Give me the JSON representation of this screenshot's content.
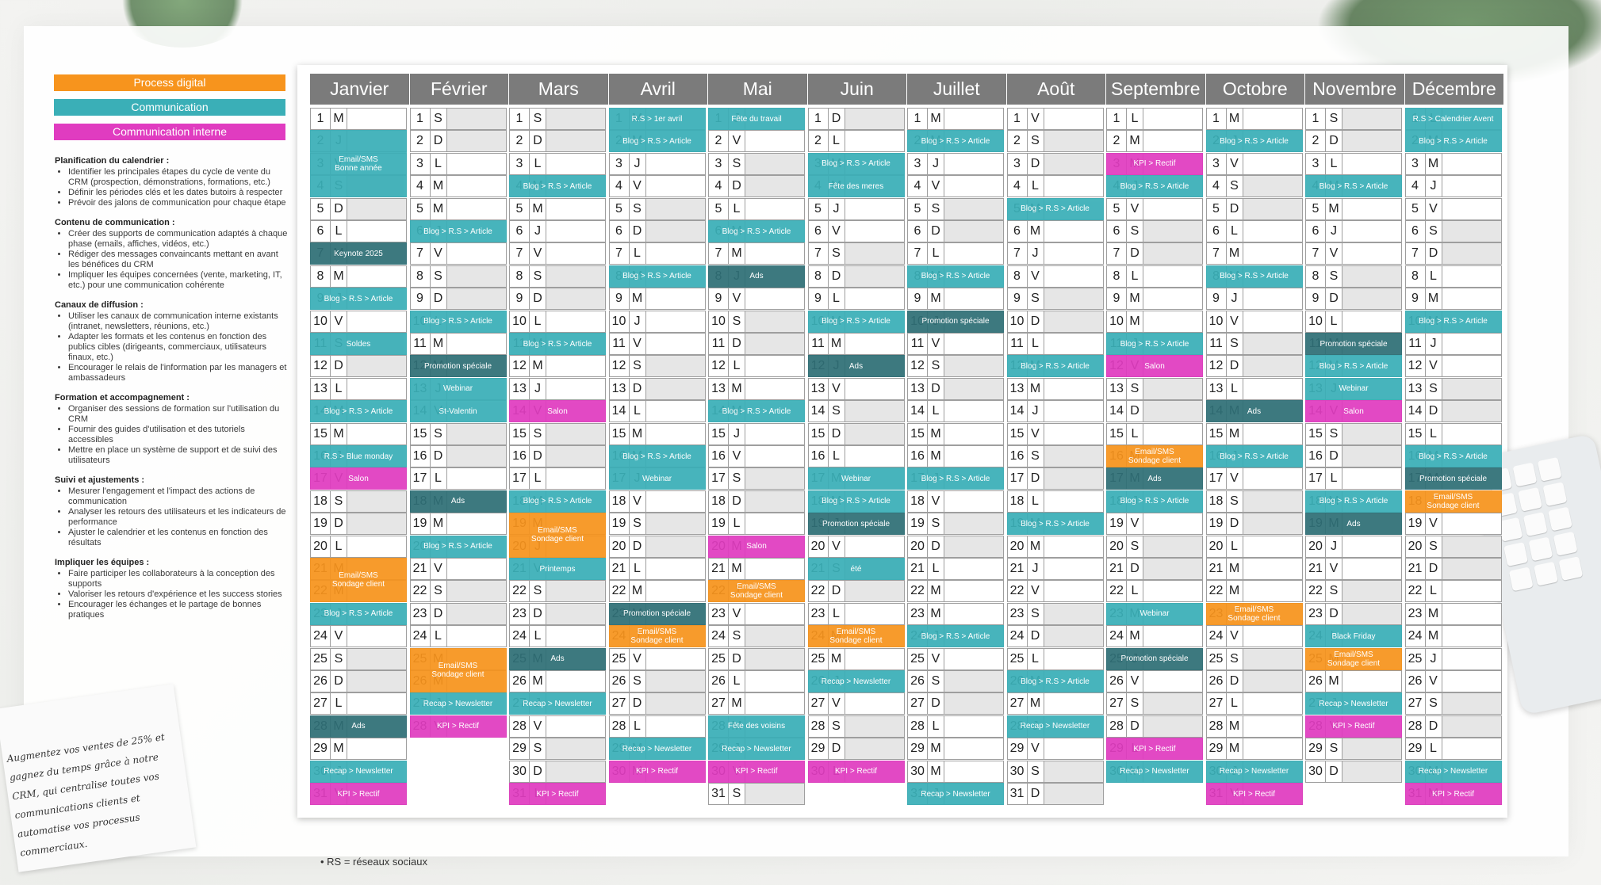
{
  "colors": {
    "process": "#f7941d",
    "comm": "#3aafb7",
    "interne": "#e03cc0",
    "dark": "#2f6f76",
    "header": "#7b7b7b"
  },
  "legend": [
    {
      "label": "Process digital",
      "color": "#f7941d"
    },
    {
      "label": "Communication",
      "color": "#3aafb7"
    },
    {
      "label": "Communication interne",
      "color": "#e03cc0"
    }
  ],
  "notes": [
    {
      "title": "Planification du calendrier :",
      "items": [
        "Identifier les principales étapes du cycle de vente du CRM (prospection, démonstrations, formations, etc.)",
        "Définir les périodes clés et les dates butoirs à respecter",
        "Prévoir des jalons de communication pour chaque étape"
      ]
    },
    {
      "title": "Contenu de communication :",
      "items": [
        "Créer des supports de communication adaptés à chaque phase (emails, affiches, vidéos, etc.)",
        "Rédiger des messages convaincants mettant en avant les bénéfices du CRM",
        "Impliquer les équipes concernées (vente, marketing, IT, etc.) pour une communication cohérente"
      ]
    },
    {
      "title": "Canaux de diffusion :",
      "items": [
        "Utiliser les canaux de communication interne existants (intranet, newsletters, réunions, etc.)",
        "Adapter les formats et les contenus en fonction des publics cibles (dirigeants, commerciaux, utilisateurs finaux, etc.)",
        "Encourager le relais de l'information par les managers et ambassadeurs"
      ]
    },
    {
      "title": "Formation et accompagnement :",
      "items": [
        "Organiser des sessions de formation sur l'utilisation du CRM",
        "Fournir des guides d'utilisation et des tutoriels accessibles",
        "Mettre en place un système de support et de suivi des utilisateurs"
      ]
    },
    {
      "title": "Suivi et ajustements :",
      "items": [
        "Mesurer l'engagement et l'impact des actions de communication",
        "Analyser les retours des utilisateurs et les indicateurs de performance",
        "Ajuster le calendrier et les contenus en fonction des résultats"
      ]
    },
    {
      "title": "Impliquer les équipes :",
      "items": [
        "Faire participer les collaborateurs à la conception des supports",
        "Valoriser les retours d'expérience et les success stories",
        "Encourager les échanges et le partage de bonnes pratiques"
      ]
    }
  ],
  "handwritten_note": "Augmentez vos ventes de 25% et gagnez du temps grâce à notre CRM, qui centralise toutes vos communications clients et automatise vos processus commerciaux.",
  "footnote": "RS = réseaux sociaux",
  "months": [
    {
      "name": "Janvier",
      "days": 31,
      "start": 2,
      "events": [
        [
          2,
          3,
          "c",
          "Email/SMS\nBonne année"
        ],
        [
          7,
          1,
          "d",
          "Keynote 2025"
        ],
        [
          9,
          1,
          "c",
          "Blog > R.S > Article"
        ],
        [
          11,
          1,
          "c",
          "Soldes"
        ],
        [
          14,
          1,
          "c",
          "Blog > R.S > Article"
        ],
        [
          16,
          1,
          "c",
          "R.S > Blue monday"
        ],
        [
          17,
          1,
          "i",
          "Salon"
        ],
        [
          21,
          2,
          "p",
          "Email/SMS\nSondage client"
        ],
        [
          23,
          1,
          "c",
          "Blog > R.S > Article"
        ],
        [
          28,
          1,
          "d",
          "Ads"
        ],
        [
          30,
          1,
          "c",
          "Recap > Newsletter"
        ],
        [
          31,
          1,
          "i",
          "KPI > Rectif"
        ]
      ]
    },
    {
      "name": "Février",
      "days": 28,
      "start": 5,
      "events": [
        [
          6,
          1,
          "c",
          "Blog > R.S > Article"
        ],
        [
          10,
          1,
          "c",
          "Blog > R.S > Article"
        ],
        [
          12,
          1,
          "d",
          "Promotion spéciale"
        ],
        [
          13,
          1,
          "c",
          "Webinar"
        ],
        [
          14,
          1,
          "c",
          "St-Valentin"
        ],
        [
          18,
          1,
          "d",
          "Ads"
        ],
        [
          20,
          1,
          "c",
          "Blog > R.S > Article"
        ],
        [
          25,
          2,
          "p",
          "Email/SMS\nSondage client"
        ],
        [
          27,
          1,
          "c",
          "Recap > Newsletter"
        ],
        [
          28,
          1,
          "i",
          "KPI > Rectif"
        ]
      ]
    },
    {
      "name": "Mars",
      "days": 31,
      "start": 5,
      "events": [
        [
          4,
          1,
          "c",
          "Blog > R.S > Article"
        ],
        [
          11,
          1,
          "c",
          "Blog > R.S > Article"
        ],
        [
          14,
          1,
          "i",
          "Salon"
        ],
        [
          18,
          1,
          "c",
          "Blog > R.S > Article"
        ],
        [
          19,
          2,
          "p",
          "Email/SMS\nSondage client"
        ],
        [
          21,
          1,
          "c",
          "Printemps"
        ],
        [
          25,
          1,
          "d",
          "Ads"
        ],
        [
          27,
          1,
          "c",
          "Recap > Newsletter"
        ],
        [
          31,
          1,
          "i",
          "KPI > Rectif"
        ]
      ]
    },
    {
      "name": "Avril",
      "days": 30,
      "start": 1,
      "events": [
        [
          1,
          1,
          "c",
          "R.S > 1er avril"
        ],
        [
          2,
          1,
          "c",
          "Blog > R.S > Article"
        ],
        [
          8,
          1,
          "c",
          "Blog > R.S > Article"
        ],
        [
          16,
          1,
          "c",
          "Blog > R.S > Article"
        ],
        [
          17,
          1,
          "c",
          "Webinar"
        ],
        [
          23,
          1,
          "d",
          "Promotion spéciale"
        ],
        [
          24,
          1,
          "p",
          "Email/SMS\nSondage client"
        ],
        [
          29,
          1,
          "c",
          "Recap > Newsletter"
        ],
        [
          30,
          1,
          "i",
          "KPI > Rectif"
        ]
      ]
    },
    {
      "name": "Mai",
      "days": 31,
      "start": 3,
      "events": [
        [
          1,
          1,
          "c",
          "Fête du travail"
        ],
        [
          6,
          1,
          "c",
          "Blog > R.S > Article"
        ],
        [
          8,
          1,
          "d",
          "Ads"
        ],
        [
          14,
          1,
          "c",
          "Blog > R.S > Article"
        ],
        [
          20,
          1,
          "i",
          "Salon"
        ],
        [
          22,
          1,
          "p",
          "Email/SMS\nSondage client"
        ],
        [
          28,
          1,
          "c",
          "Fête des voisins"
        ],
        [
          29,
          1,
          "c",
          "Recap > Newsletter"
        ],
        [
          30,
          1,
          "i",
          "KPI > Rectif"
        ]
      ]
    },
    {
      "name": "Juin",
      "days": 30,
      "start": 6,
      "events": [
        [
          3,
          1,
          "c",
          "Blog > R.S > Article"
        ],
        [
          4,
          1,
          "c",
          "Fête des meres"
        ],
        [
          10,
          1,
          "c",
          "Blog > R.S > Article"
        ],
        [
          12,
          1,
          "d",
          "Ads"
        ],
        [
          17,
          1,
          "c",
          "Webinar"
        ],
        [
          18,
          1,
          "c",
          "Blog > R.S > Article"
        ],
        [
          19,
          1,
          "d",
          "Promotion spéciale"
        ],
        [
          21,
          1,
          "c",
          "été"
        ],
        [
          24,
          1,
          "p",
          "Email/SMS\nSondage client"
        ],
        [
          26,
          1,
          "c",
          "Recap > Newsletter"
        ],
        [
          30,
          1,
          "i",
          "KPI > Rectif"
        ]
      ]
    },
    {
      "name": "Juillet",
      "days": 31,
      "start": 1,
      "events": [
        [
          2,
          1,
          "c",
          "Blog > R.S > Article"
        ],
        [
          8,
          1,
          "c",
          "Blog > R.S > Article"
        ],
        [
          10,
          1,
          "d",
          "Promotion spéciale"
        ],
        [
          17,
          1,
          "c",
          "Blog > R.S > Article"
        ],
        [
          24,
          1,
          "c",
          "Blog > R.S > Article"
        ],
        [
          31,
          1,
          "c",
          "Recap > Newsletter"
        ]
      ]
    },
    {
      "name": "Août",
      "days": 31,
      "start": 4,
      "events": [
        [
          5,
          1,
          "c",
          "Blog > R.S > Article"
        ],
        [
          12,
          1,
          "c",
          "Blog > R.S > Article"
        ],
        [
          19,
          1,
          "c",
          "Blog > R.S > Article"
        ],
        [
          26,
          1,
          "c",
          "Blog > R.S > Article"
        ],
        [
          28,
          1,
          "c",
          "Recap > Newsletter"
        ]
      ]
    },
    {
      "name": "Septembre",
      "days": 30,
      "start": 0,
      "events": [
        [
          3,
          1,
          "i",
          "KPI > Rectif"
        ],
        [
          4,
          1,
          "c",
          "Blog > R.S > Article"
        ],
        [
          11,
          1,
          "c",
          "Blog > R.S > Article"
        ],
        [
          12,
          1,
          "i",
          "Salon"
        ],
        [
          16,
          1,
          "p",
          "Email/SMS\nSondage client"
        ],
        [
          17,
          1,
          "d",
          "Ads"
        ],
        [
          18,
          1,
          "c",
          "Blog > R.S > Article"
        ],
        [
          23,
          1,
          "c",
          "Webinar"
        ],
        [
          25,
          1,
          "d",
          "Promotion spéciale"
        ],
        [
          29,
          1,
          "i",
          "KPI > Rectif"
        ],
        [
          30,
          1,
          "c",
          "Recap > Newsletter"
        ]
      ]
    },
    {
      "name": "Octobre",
      "days": 31,
      "start": 2,
      "events": [
        [
          2,
          1,
          "c",
          "Blog > R.S > Article"
        ],
        [
          8,
          1,
          "c",
          "Blog > R.S > Article"
        ],
        [
          14,
          1,
          "d",
          "Ads"
        ],
        [
          16,
          1,
          "c",
          "Blog > R.S > Article"
        ],
        [
          23,
          1,
          "p",
          "Email/SMS\nSondage client"
        ],
        [
          30,
          1,
          "c",
          "Recap > Newsletter"
        ],
        [
          31,
          1,
          "i",
          "KPI > Rectif"
        ]
      ]
    },
    {
      "name": "Novembre",
      "days": 30,
      "start": 5,
      "events": [
        [
          4,
          1,
          "c",
          "Blog > R.S > Article"
        ],
        [
          11,
          1,
          "d",
          "Promotion spéciale"
        ],
        [
          12,
          1,
          "c",
          "Blog > R.S > Article"
        ],
        [
          13,
          1,
          "c",
          "Webinar"
        ],
        [
          14,
          1,
          "i",
          "Salon"
        ],
        [
          18,
          1,
          "c",
          "Blog > R.S > Article"
        ],
        [
          19,
          1,
          "d",
          "Ads"
        ],
        [
          24,
          1,
          "c",
          "Black Friday"
        ],
        [
          25,
          1,
          "p",
          "Email/SMS\nSondage client"
        ],
        [
          27,
          1,
          "c",
          "Recap > Newsletter"
        ],
        [
          28,
          1,
          "i",
          "KPI > Rectif"
        ]
      ]
    },
    {
      "name": "Décembre",
      "days": 31,
      "start": 0,
      "events": [
        [
          1,
          1,
          "c",
          "R.S > Calendrier Avent"
        ],
        [
          2,
          1,
          "c",
          "Blog > R.S > Article"
        ],
        [
          10,
          1,
          "c",
          "Blog > R.S > Article"
        ],
        [
          16,
          1,
          "c",
          "Blog > R.S > Article"
        ],
        [
          17,
          1,
          "d",
          "Promotion spéciale"
        ],
        [
          18,
          1,
          "p",
          "Email/SMS\nSondage client"
        ],
        [
          30,
          1,
          "c",
          "Recap > Newsletter"
        ],
        [
          31,
          1,
          "i",
          "KPI > Rectif"
        ]
      ]
    }
  ],
  "weekday_letters": [
    "L",
    "M",
    "M",
    "J",
    "V",
    "S",
    "D"
  ]
}
